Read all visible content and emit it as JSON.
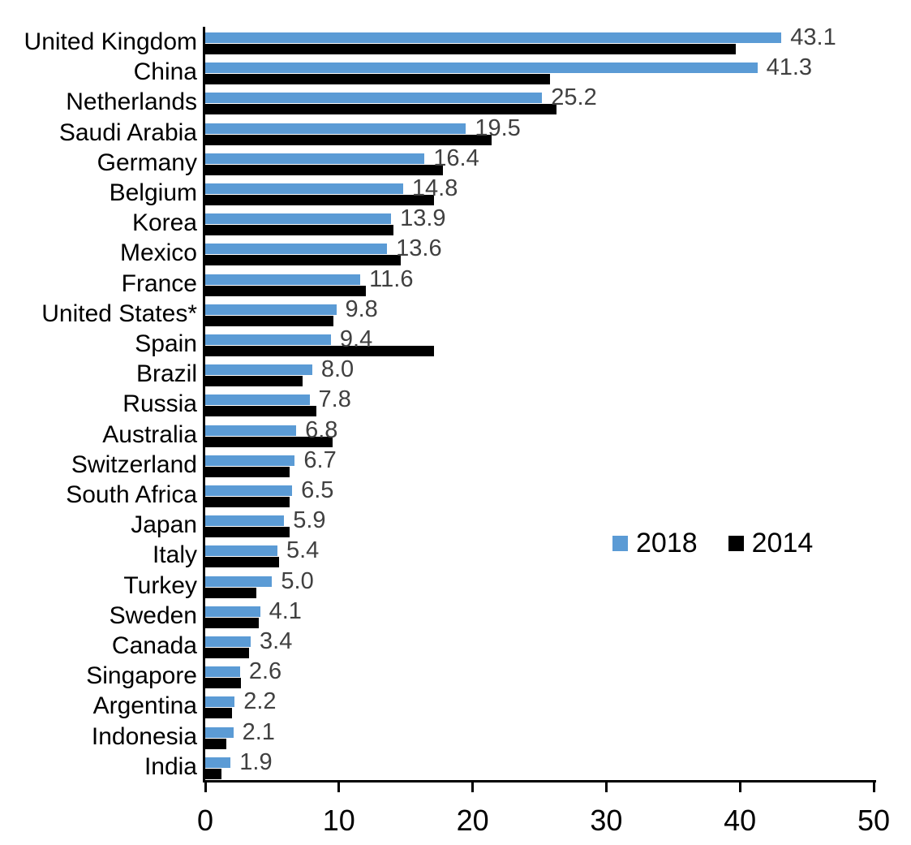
{
  "chart_data": {
    "type": "bar",
    "orientation": "horizontal",
    "title": "",
    "xlabel": "",
    "ylabel": "",
    "grid": false,
    "xlim": [
      0,
      50
    ],
    "xticks": [
      "0",
      "10",
      "20",
      "30",
      "40",
      "50"
    ],
    "xtick_values": [
      0,
      10,
      20,
      30,
      40,
      50
    ],
    "legend_position": "middle-right",
    "data_label_color": "#404040",
    "categories": [
      "United Kingdom",
      "China",
      "Netherlands",
      "Saudi Arabia",
      "Germany",
      "Belgium",
      "Korea",
      "Mexico",
      "France",
      "United States*",
      "Spain",
      "Brazil",
      "Russia",
      "Australia",
      "Switzerland",
      "South Africa",
      "Japan",
      "Italy",
      "Turkey",
      "Sweden",
      "Canada",
      "Singapore",
      "Argentina",
      "Indonesia",
      "India"
    ],
    "series": [
      {
        "name": "2018",
        "color": "#5B9BD5",
        "values": [
          43.1,
          41.3,
          25.2,
          19.5,
          16.4,
          14.8,
          13.9,
          13.6,
          11.6,
          9.8,
          9.4,
          8.0,
          7.8,
          6.8,
          6.7,
          6.5,
          5.9,
          5.4,
          5.0,
          4.1,
          3.4,
          2.6,
          2.2,
          2.1,
          1.9
        ],
        "value_labels": [
          "43.1",
          "41.3",
          "25.2",
          "19.5",
          "16.4",
          "14.8",
          "13.9",
          "13.6",
          "11.6",
          "9.8",
          "9.4",
          "8.0",
          "7.8",
          "6.8",
          "6.7",
          "6.5",
          "5.9",
          "5.4",
          "5.0",
          "4.1",
          "3.4",
          "2.6",
          "2.2",
          "2.1",
          "1.9"
        ]
      },
      {
        "name": "2014",
        "color": "#000000",
        "values": [
          39.7,
          25.8,
          26.3,
          21.4,
          17.8,
          17.1,
          14.1,
          14.6,
          12.0,
          9.6,
          17.1,
          7.3,
          8.3,
          9.5,
          6.3,
          6.3,
          6.3,
          5.5,
          3.8,
          4.0,
          3.3,
          2.7,
          2.0,
          1.6,
          1.2
        ]
      }
    ]
  }
}
